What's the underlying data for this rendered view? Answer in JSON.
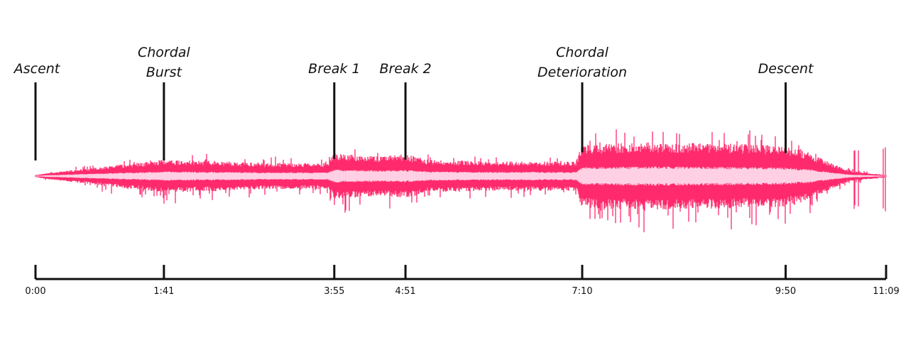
{
  "chart_data": {
    "type": "area",
    "title": "",
    "xlabel": "",
    "ylabel": "",
    "x_unit": "time",
    "duration": "11:09",
    "colors": {
      "waveform": "#ff2a6d",
      "waveform_core": "#ffd0e3",
      "axis": "#111111",
      "text": "#111111"
    },
    "sections": [
      {
        "label": [
          "Ascent"
        ],
        "time": "0:00"
      },
      {
        "label": [
          "Chordal",
          "Burst"
        ],
        "time": "1:41"
      },
      {
        "label": [
          "Break 1"
        ],
        "time": "3:55"
      },
      {
        "label": [
          "Break 2"
        ],
        "time": "4:51"
      },
      {
        "label": [
          "Chordal",
          "Deterioration"
        ],
        "time": "7:10"
      },
      {
        "label": [
          "Descent"
        ],
        "time": "9:50"
      }
    ],
    "ticks": [
      "0:00",
      "1:41",
      "3:55",
      "4:51",
      "7:10",
      "9:50",
      "11:09"
    ],
    "amplitude_envelope": {
      "note": "relative loudness 0-1",
      "points": [
        [
          "0:00",
          0.02
        ],
        [
          "0:10",
          0.06
        ],
        [
          "0:40",
          0.14
        ],
        [
          "1:10",
          0.22
        ],
        [
          "1:41",
          0.3
        ],
        [
          "2:20",
          0.28
        ],
        [
          "3:00",
          0.24
        ],
        [
          "3:50",
          0.24
        ],
        [
          "3:55",
          0.42
        ],
        [
          "4:30",
          0.36
        ],
        [
          "4:51",
          0.4
        ],
        [
          "5:10",
          0.3
        ],
        [
          "6:00",
          0.27
        ],
        [
          "7:05",
          0.27
        ],
        [
          "7:10",
          0.58
        ],
        [
          "8:00",
          0.62
        ],
        [
          "9:00",
          0.6
        ],
        [
          "9:50",
          0.56
        ],
        [
          "10:10",
          0.42
        ],
        [
          "10:20",
          0.3
        ],
        [
          "10:40",
          0.1
        ],
        [
          "11:09",
          0.02
        ]
      ]
    }
  }
}
